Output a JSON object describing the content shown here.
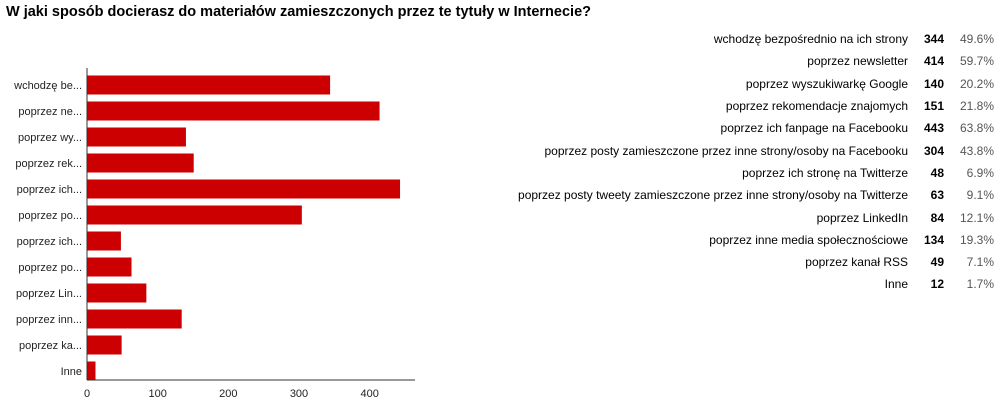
{
  "title": "W jaki sposób docierasz do materiałów zamieszczonych przez te tytuły w Internecie?",
  "chart_data": {
    "type": "bar",
    "orientation": "horizontal",
    "title": "W jaki sposób docierasz do materiałów zamieszczonych przez te tytuły w Internecie?",
    "categories": [
      "wchodzę bezpośrednio na ich strony",
      "poprzez newsletter",
      "poprzez wyszukiwarkę Google",
      "poprzez rekomendacje znajomych",
      "poprzez ich fanpage na Facebooku",
      "poprzez posty zamieszczone przez inne strony/osoby na Facebooku",
      "poprzez ich stronę na Twitterze",
      "poprzez posty tweety zamieszczone przez inne strony/osoby na Twitterze",
      "poprzez LinkedIn",
      "poprzez inne media społecznościowe",
      "poprzez kanał RSS",
      "Inne"
    ],
    "short_labels": [
      "wchodzę be...",
      "poprzez ne...",
      "poprzez wy...",
      "poprzez rek...",
      "poprzez ich...",
      "poprzez po...",
      "poprzez ich...",
      "poprzez po...",
      "poprzez Lin...",
      "poprzez inn...",
      "poprzez ka...",
      "Inne"
    ],
    "values": [
      344,
      414,
      140,
      151,
      443,
      304,
      48,
      63,
      84,
      134,
      49,
      12
    ],
    "percents": [
      "49.6%",
      "59.7%",
      "20.2%",
      "21.8%",
      "63.8%",
      "43.8%",
      "6.9%",
      "9.1%",
      "12.1%",
      "19.3%",
      "7.1%",
      "1.7%"
    ],
    "xlim": [
      0,
      450
    ],
    "xticks": [
      0,
      100,
      200,
      300,
      400
    ],
    "bar_color": "#cc0000",
    "grid": false
  }
}
